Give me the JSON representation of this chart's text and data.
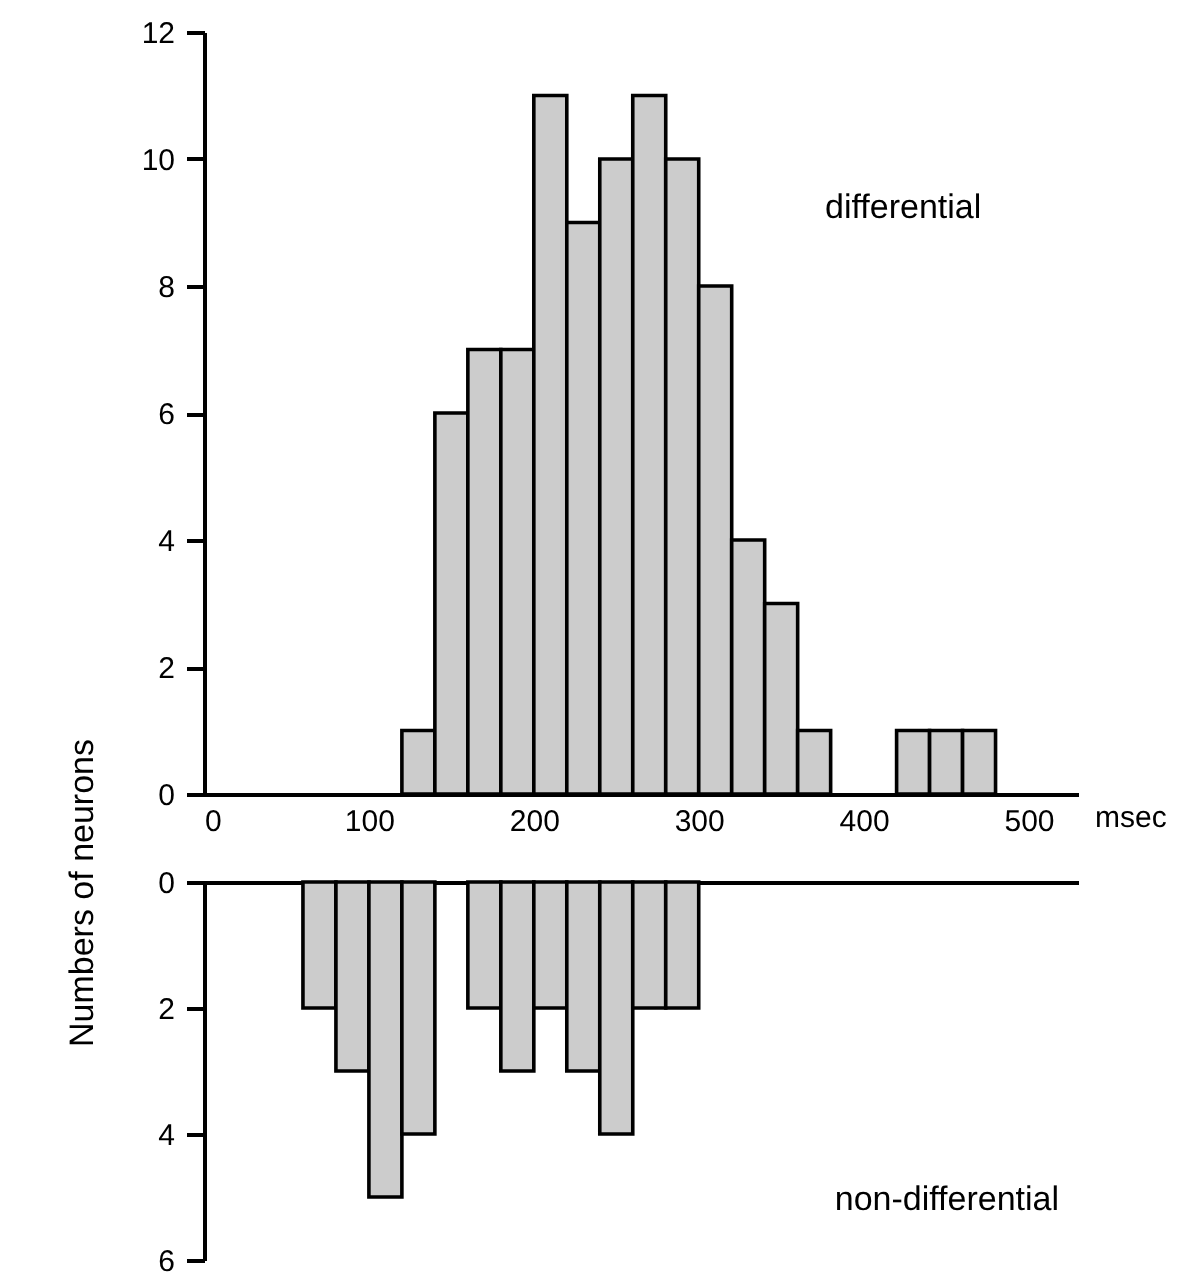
{
  "chart_data": [
    {
      "type": "histogram",
      "ylabel": "Numbers of neurons",
      "xlabel": "msec",
      "annotations": [
        "differential"
      ],
      "color": "#cccccc",
      "bins": [
        120,
        140,
        160,
        180,
        200,
        220,
        240,
        260,
        280,
        300,
        320,
        340,
        360,
        380,
        400,
        420,
        440,
        460,
        480
      ],
      "values": [
        1,
        6,
        7,
        7,
        11,
        9,
        10,
        11,
        10,
        8,
        4,
        3,
        1,
        0,
        0,
        1,
        1,
        1
      ],
      "xlim": [
        0,
        530
      ],
      "xticks": [
        0,
        100,
        200,
        300,
        400,
        500
      ],
      "ylim": [
        0,
        12
      ],
      "yticks": [
        0,
        2,
        4,
        6,
        8,
        10,
        12
      ]
    },
    {
      "type": "histogram",
      "annotations": [
        "non-differential"
      ],
      "color": "#cccccc",
      "bins": [
        60,
        80,
        100,
        120,
        140,
        160,
        180,
        200,
        220,
        240,
        260,
        280,
        300
      ],
      "values": [
        2,
        3,
        5,
        4,
        0,
        2,
        3,
        2,
        3,
        4,
        2,
        2
      ],
      "xlim": [
        0,
        530
      ],
      "ylim": [
        6,
        0
      ],
      "yticks": [
        0,
        2,
        4,
        6
      ],
      "tick_labels": "y"
    }
  ]
}
